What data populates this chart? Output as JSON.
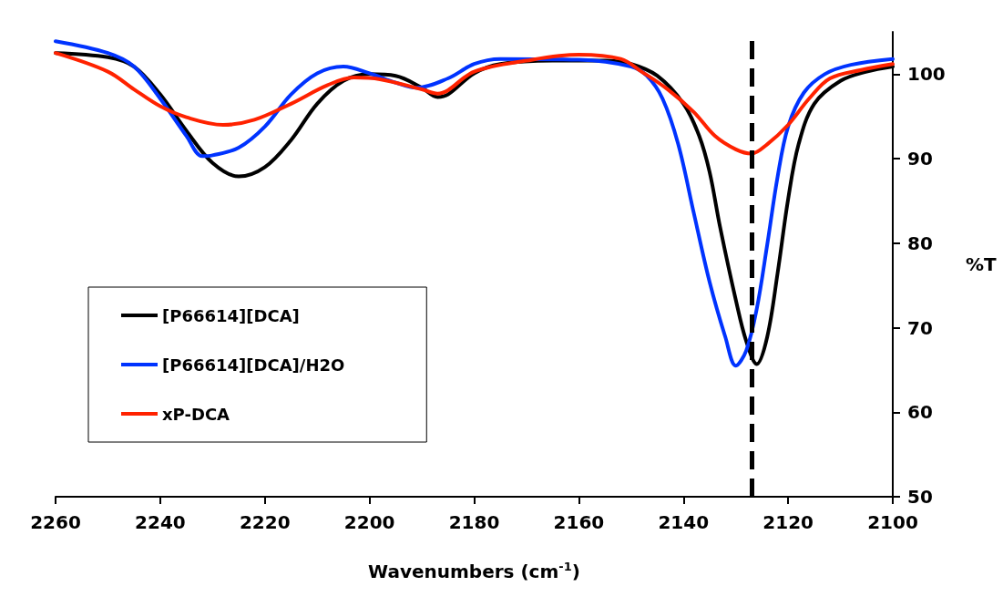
{
  "chart_data": {
    "type": "line",
    "xlabel": "Wavenumbers (cm$^{-1}$)",
    "ylabel": "%T",
    "xlim": [
      2260,
      2100
    ],
    "xticks": [
      2260,
      2240,
      2220,
      2200,
      2180,
      2160,
      2140,
      2120,
      2100
    ],
    "ylim": [
      50,
      105
    ],
    "yticks": [
      50,
      60,
      70,
      80,
      90,
      100
    ],
    "grid": false,
    "legend": "left",
    "marker": "none",
    "line_style": "solid",
    "ref_lines": [
      {
        "axis": "x",
        "value": 2127,
        "color": "#000000",
        "line_style": "dashed"
      }
    ],
    "series": [
      {
        "name": "[P66614][DCA]",
        "color": "#000000",
        "x": [
          2260,
          2250,
          2245,
          2240,
          2235,
          2230,
          2225,
          2220,
          2215,
          2210,
          2205,
          2200,
          2195,
          2190,
          2187,
          2185,
          2180,
          2175,
          2165,
          2155,
          2150,
          2145,
          2140,
          2137,
          2135,
          2133,
          2130,
          2128,
          2126,
          2124,
          2122,
          2120,
          2118,
          2115,
          2110,
          2105,
          2100
        ],
        "values": [
          102.5,
          102,
          100.9,
          97.6,
          93.3,
          89.5,
          87.9,
          89,
          92.2,
          96.5,
          99.2,
          100,
          99.8,
          98.4,
          97.3,
          97.6,
          100.1,
          101.2,
          101.6,
          101.6,
          101.2,
          99.8,
          96.5,
          92.7,
          88.4,
          81.9,
          73.3,
          68.4,
          65.7,
          68.9,
          76.5,
          85.2,
          91.7,
          96.5,
          99.2,
          100.3,
          100.9
        ]
      },
      {
        "name": "[P66614][DCA]/H2O",
        "color": "#0033ff",
        "x": [
          2260,
          2250,
          2245,
          2240,
          2235,
          2232,
          2230,
          2225,
          2220,
          2215,
          2210,
          2205,
          2200,
          2195,
          2191,
          2185,
          2180,
          2175,
          2160,
          2150,
          2147,
          2144,
          2141,
          2138,
          2135,
          2132,
          2130,
          2128,
          2126,
          2124,
          2122,
          2120,
          2117,
          2113,
          2108,
          2100
        ],
        "values": [
          103.9,
          102.5,
          100.9,
          97.1,
          92.7,
          90.3,
          90.4,
          91.3,
          93.8,
          97.6,
          100.1,
          100.9,
          100.1,
          99,
          98.4,
          99.5,
          101.2,
          101.8,
          101.7,
          100.9,
          99.8,
          97.1,
          91.7,
          83.5,
          75.4,
          68.9,
          65.5,
          67.3,
          72.2,
          79.8,
          87.9,
          93.8,
          97.8,
          100,
          101.1,
          101.8
        ]
      },
      {
        "name": "xP-DCA",
        "color": "#ff2200",
        "x": [
          2260,
          2250,
          2245,
          2240,
          2235,
          2228,
          2222,
          2215,
          2208,
          2203,
          2198,
          2190,
          2187,
          2180,
          2170,
          2160,
          2152,
          2148,
          2143,
          2138,
          2134,
          2130,
          2127,
          2124,
          2120,
          2116,
          2112,
          2106,
          2100
        ],
        "values": [
          102.5,
          100.3,
          98.2,
          96.2,
          94.9,
          94,
          94.6,
          96.5,
          98.7,
          99.6,
          99.4,
          98.2,
          97.7,
          100.3,
          101.6,
          102.3,
          101.8,
          100.3,
          98.2,
          95.5,
          92.7,
          91.1,
          90.6,
          91.7,
          94,
          97.1,
          99.5,
          100.5,
          101.2
        ]
      }
    ]
  }
}
